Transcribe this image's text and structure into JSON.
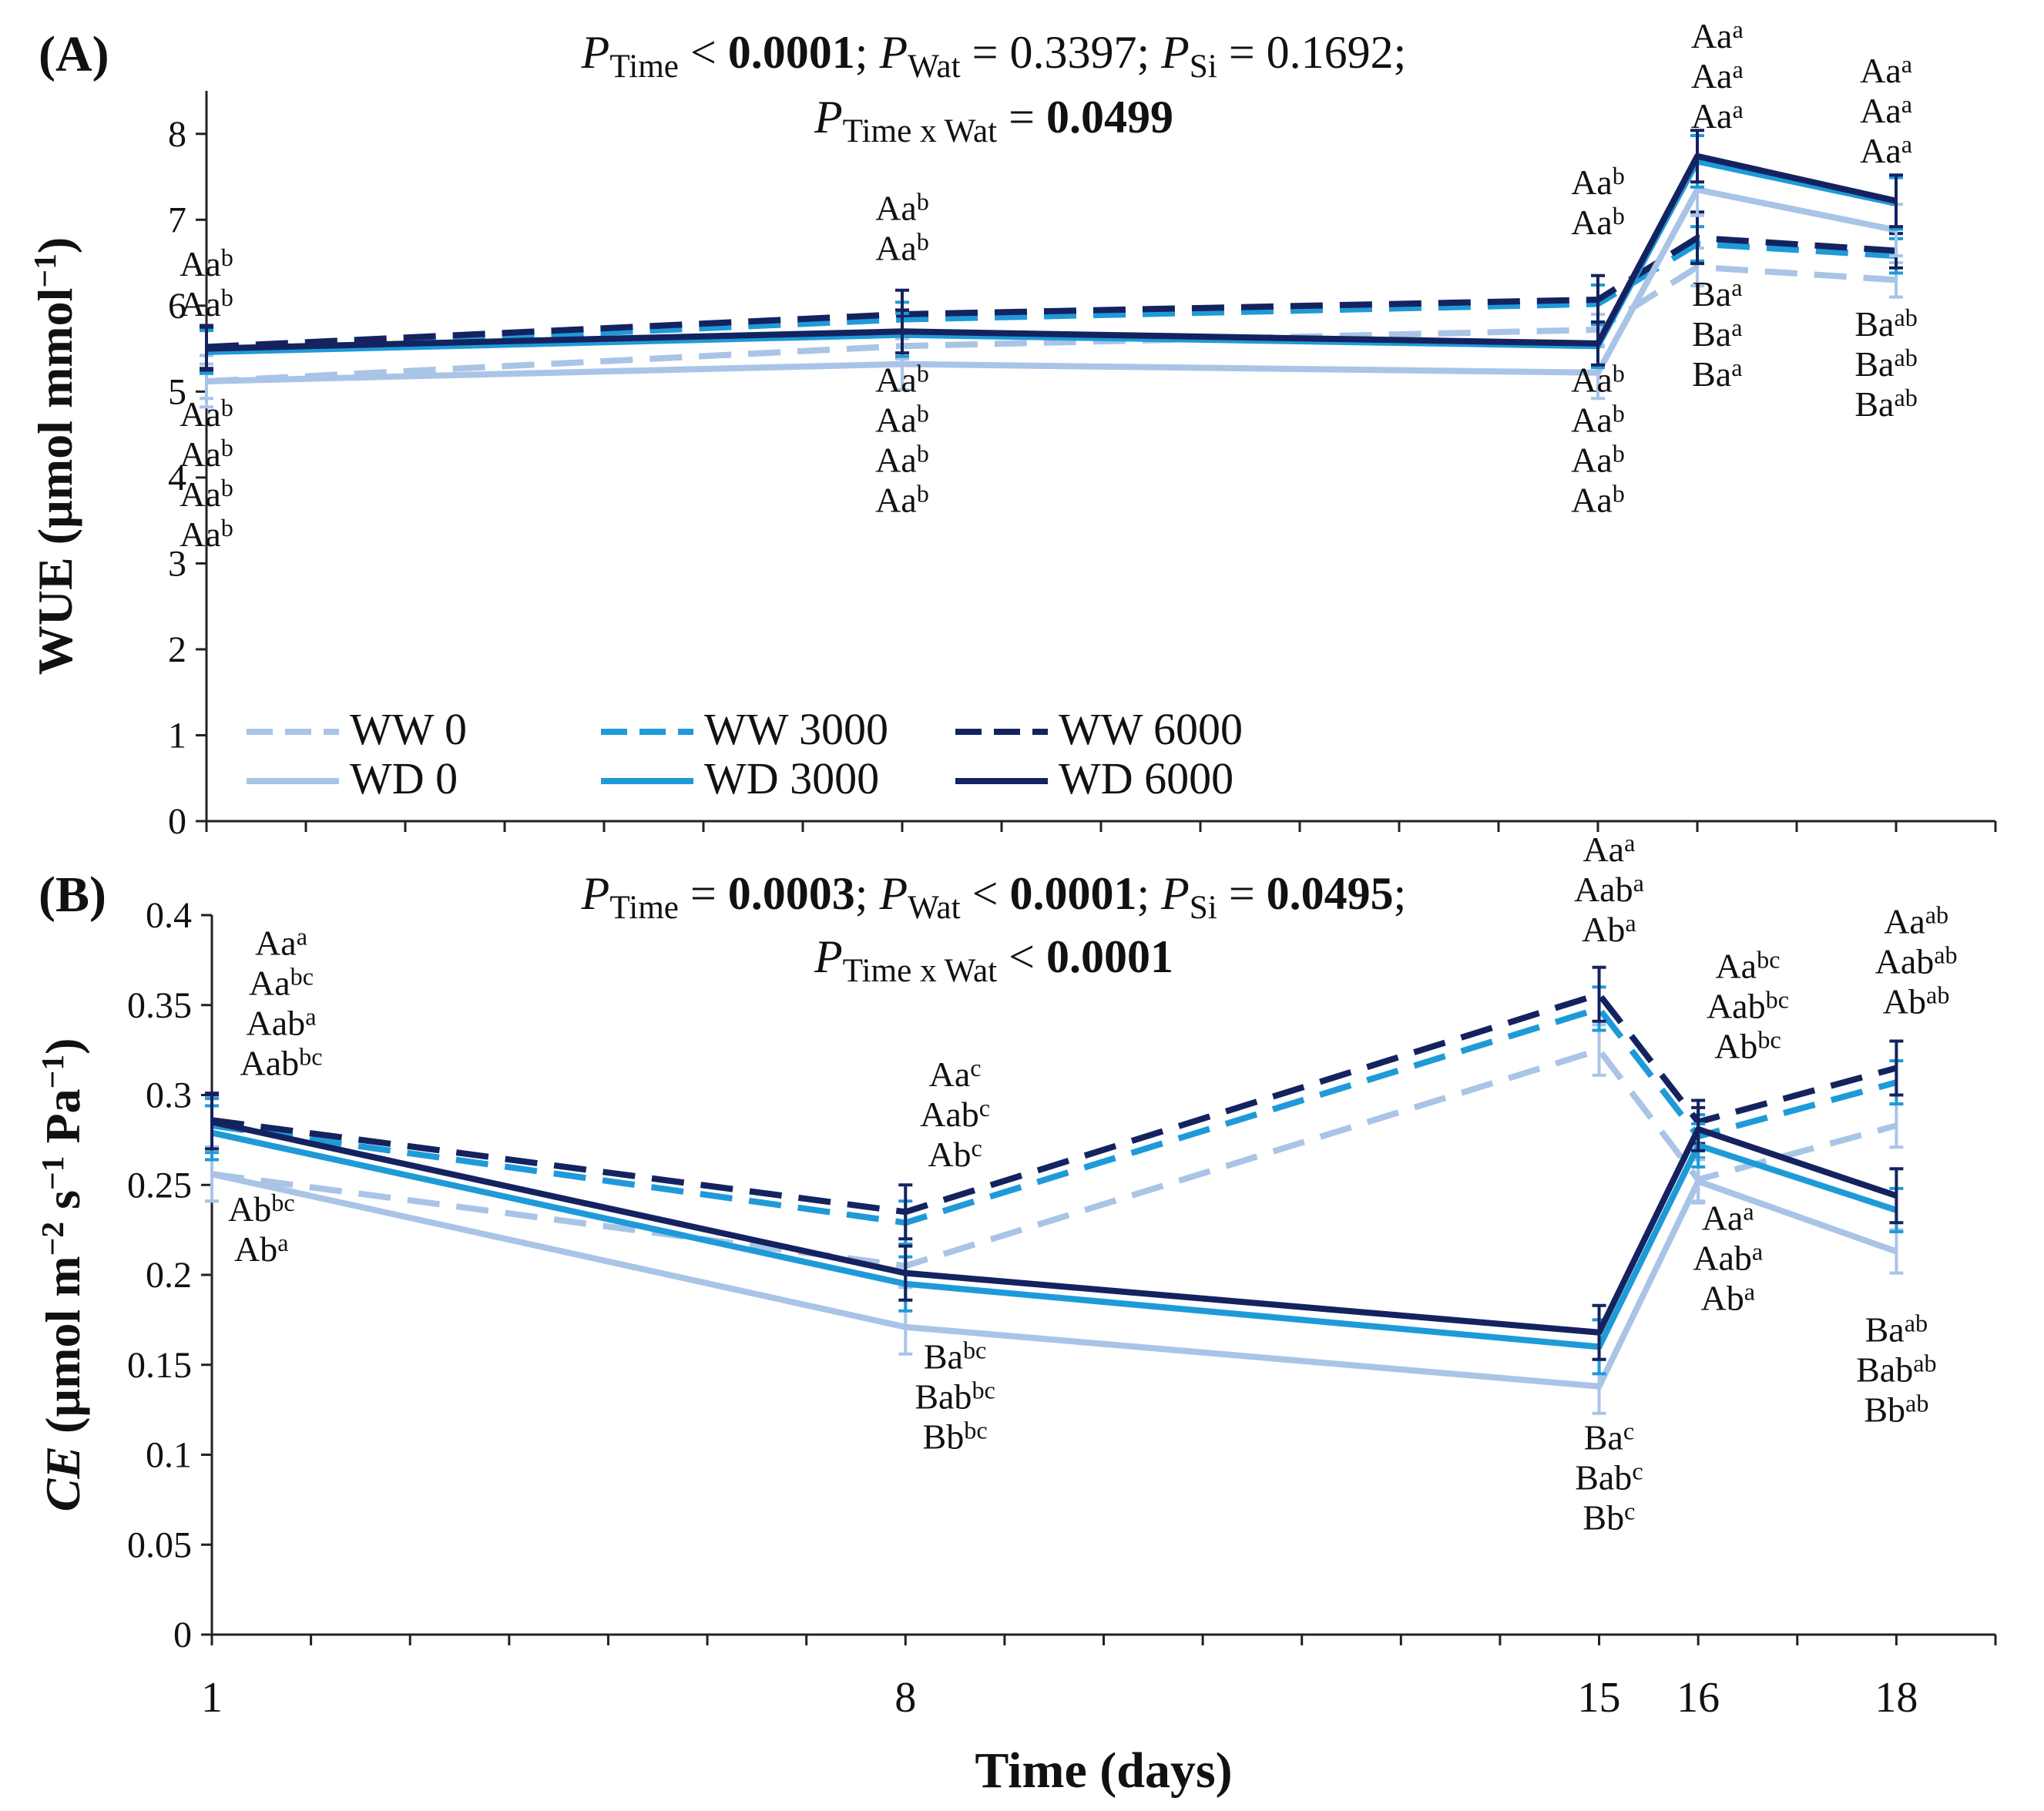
{
  "colors": {
    "light": "#a9c4e6",
    "mid": "#1f9ad8",
    "dark": "#14235f"
  },
  "legend": [
    {
      "label": "WW 0",
      "color_key": "light",
      "dashed": true
    },
    {
      "label": "WW 3000",
      "color_key": "mid",
      "dashed": true
    },
    {
      "label": "WW 6000",
      "color_key": "dark",
      "dashed": true
    },
    {
      "label": "WD 0",
      "color_key": "light",
      "dashed": false
    },
    {
      "label": "WD 3000",
      "color_key": "mid",
      "dashed": false
    },
    {
      "label": "WD 6000",
      "color_key": "dark",
      "dashed": false
    }
  ],
  "x_axis": {
    "label": "Time (days)",
    "ticks": [
      "1",
      "8",
      "15",
      "16",
      "18"
    ]
  },
  "chart_data": [
    {
      "id": "A",
      "type": "line",
      "panel_label": "(A)",
      "stats": [
        [
          {
            "t": "P",
            "italic": true
          },
          {
            "t": "Time",
            "sub": true
          },
          {
            "t": " < "
          },
          {
            "t": "0.0001",
            "bold": true
          },
          {
            "t": "; "
          },
          {
            "t": "P",
            "italic": true
          },
          {
            "t": "Wat",
            "sub": true
          },
          {
            "t": " = 0.3397; "
          },
          {
            "t": "P",
            "italic": true
          },
          {
            "t": "Si",
            "sub": true
          },
          {
            "t": " = 0.1692;"
          }
        ],
        [
          {
            "t": "P",
            "italic": true
          },
          {
            "t": "Time x Wat",
            "sub": true
          },
          {
            "t": " = "
          },
          {
            "t": "0.0499",
            "bold": true
          }
        ]
      ],
      "ylabel": [
        {
          "t": "WUE (µmol mmol"
        },
        {
          "t": "−1",
          "sup": true
        },
        {
          "t": ")"
        }
      ],
      "ylim": [
        0,
        8.5
      ],
      "yticks": [
        0,
        1,
        2,
        3,
        4,
        5,
        6,
        7,
        8
      ],
      "ytick_labels": [
        "0",
        "1",
        "2",
        "3",
        "4",
        "5",
        "6",
        "7",
        "8"
      ],
      "x": [
        1,
        8,
        15,
        16,
        18
      ],
      "xlim": [
        1,
        19
      ],
      "series": [
        {
          "name": "WW 0",
          "color_key": "light",
          "dashed": true,
          "values": [
            5.12,
            5.53,
            5.72,
            6.45,
            6.3
          ],
          "err": [
            0.2,
            0.15,
            0.18,
            0.22,
            0.2
          ]
        },
        {
          "name": "WW 3000",
          "color_key": "mid",
          "dashed": true,
          "values": [
            5.48,
            5.84,
            6.02,
            6.72,
            6.58
          ],
          "err": [
            0.25,
            0.2,
            0.22,
            0.2,
            0.2
          ]
        },
        {
          "name": "WW 6000",
          "color_key": "dark",
          "dashed": true,
          "values": [
            5.52,
            5.9,
            6.07,
            6.79,
            6.64
          ],
          "err": [
            0.25,
            0.28,
            0.28,
            0.3,
            0.2
          ]
        },
        {
          "name": "WD 0",
          "color_key": "light",
          "dashed": false,
          "values": [
            5.12,
            5.32,
            5.22,
            7.35,
            6.88
          ],
          "err": [
            0.3,
            0.3,
            0.3,
            0.3,
            0.3
          ]
        },
        {
          "name": "WD 3000",
          "color_key": "mid",
          "dashed": false,
          "values": [
            5.46,
            5.66,
            5.53,
            7.68,
            7.19
          ],
          "err": [
            0.25,
            0.25,
            0.25,
            0.3,
            0.3
          ]
        },
        {
          "name": "WD 6000",
          "color_key": "dark",
          "dashed": false,
          "values": [
            5.5,
            5.7,
            5.56,
            7.74,
            7.22
          ],
          "err": [
            0.25,
            0.25,
            0.25,
            0.3,
            0.3
          ]
        }
      ],
      "annotations": [
        {
          "x": 1,
          "y": 6.35,
          "lines": [
            [
              "Aa",
              "b"
            ],
            [
              "Aa",
              "b"
            ]
          ]
        },
        {
          "x": 1,
          "y": 4.6,
          "lines": [
            [
              "Aa",
              "b"
            ],
            [
              "Aa",
              "b"
            ],
            [
              "Aa",
              "b"
            ],
            [
              "Aa",
              "b"
            ]
          ]
        },
        {
          "x": 8,
          "y": 7.0,
          "lines": [
            [
              "Aa",
              "b"
            ],
            [
              "Aa",
              "b"
            ]
          ]
        },
        {
          "x": 8,
          "y": 5.0,
          "lines": [
            [
              "Aa",
              "b"
            ],
            [
              "Aa",
              "b"
            ],
            [
              "Aa",
              "b"
            ],
            [
              "Aa",
              "b"
            ]
          ]
        },
        {
          "x": 15,
          "y": 7.3,
          "lines": [
            [
              "Aa",
              "b"
            ],
            [
              "Aa",
              "b"
            ]
          ]
        },
        {
          "x": 15,
          "y": 5.0,
          "lines": [
            [
              "Aa",
              "b"
            ],
            [
              "Aa",
              "b"
            ],
            [
              "Aa",
              "b"
            ],
            [
              "Aa",
              "b"
            ]
          ]
        },
        {
          "x": 16.2,
          "y": 9.0,
          "lines": [
            [
              "Aa",
              "a"
            ],
            [
              "Aa",
              "a"
            ],
            [
              "Aa",
              "a"
            ]
          ]
        },
        {
          "x": 16.2,
          "y": 6.0,
          "lines": [
            [
              "Ba",
              "a"
            ],
            [
              "Ba",
              "a"
            ],
            [
              "Ba",
              "a"
            ]
          ]
        },
        {
          "x": 17.9,
          "y": 8.6,
          "lines": [
            [
              "Aa",
              "a"
            ],
            [
              "Aa",
              "a"
            ],
            [
              "Aa",
              "a"
            ]
          ]
        },
        {
          "x": 17.9,
          "y": 5.65,
          "lines": [
            [
              "Ba",
              "ab"
            ],
            [
              "Ba",
              "ab"
            ],
            [
              "Ba",
              "ab"
            ]
          ]
        }
      ]
    },
    {
      "id": "B",
      "type": "line",
      "panel_label": "(B)",
      "stats": [
        [
          {
            "t": "P",
            "italic": true
          },
          {
            "t": "Time",
            "sub": true
          },
          {
            "t": " = "
          },
          {
            "t": "0.0003",
            "bold": true
          },
          {
            "t": "; "
          },
          {
            "t": "P",
            "italic": true
          },
          {
            "t": "Wat",
            "sub": true
          },
          {
            "t": " < "
          },
          {
            "t": "0.0001",
            "bold": true
          },
          {
            "t": "; "
          },
          {
            "t": "P",
            "italic": true
          },
          {
            "t": "Si",
            "sub": true
          },
          {
            "t": " = "
          },
          {
            "t": "0.0495",
            "bold": true
          },
          {
            "t": ";"
          }
        ],
        [
          {
            "t": "P",
            "italic": true
          },
          {
            "t": "Time x Wat",
            "sub": true
          },
          {
            "t": " < "
          },
          {
            "t": "0.0001",
            "bold": true
          }
        ]
      ],
      "ylabel": [
        {
          "t": "CE",
          "italic": true
        },
        {
          "t": " (µmol m"
        },
        {
          "t": "−2",
          "sup": true
        },
        {
          "t": " s"
        },
        {
          "t": "−1",
          "sup": true
        },
        {
          "t": " Pa"
        },
        {
          "t": "−1",
          "sup": true
        },
        {
          "t": ")"
        }
      ],
      "ylim": [
        0,
        0.4
      ],
      "yticks": [
        0,
        0.05,
        0.1,
        0.15,
        0.2,
        0.25,
        0.3,
        0.35,
        0.4
      ],
      "ytick_labels": [
        "0",
        "0.05",
        "0.1",
        "0.15",
        "0.2",
        "0.25",
        "0.3",
        "0.35",
        "0.4"
      ],
      "x": [
        1,
        8,
        15,
        16,
        18
      ],
      "xlim": [
        1,
        19
      ],
      "series": [
        {
          "name": "WW 0",
          "color_key": "light",
          "dashed": true,
          "values": [
            0.256,
            0.205,
            0.325,
            0.253,
            0.283
          ],
          "err": [
            0.015,
            0.012,
            0.014,
            0.012,
            0.012
          ]
        },
        {
          "name": "WW 3000",
          "color_key": "mid",
          "dashed": true,
          "values": [
            0.283,
            0.229,
            0.348,
            0.277,
            0.307
          ],
          "err": [
            0.015,
            0.012,
            0.012,
            0.012,
            0.012
          ]
        },
        {
          "name": "WW 6000",
          "color_key": "dark",
          "dashed": true,
          "values": [
            0.286,
            0.235,
            0.356,
            0.285,
            0.315
          ],
          "err": [
            0.015,
            0.015,
            0.015,
            0.012,
            0.015
          ]
        },
        {
          "name": "WD 0",
          "color_key": "light",
          "dashed": false,
          "values": [
            0.256,
            0.171,
            0.138,
            0.252,
            0.213
          ],
          "err": [
            0.015,
            0.015,
            0.015,
            0.012,
            0.012
          ]
        },
        {
          "name": "WD 3000",
          "color_key": "mid",
          "dashed": false,
          "values": [
            0.279,
            0.195,
            0.16,
            0.272,
            0.236
          ],
          "err": [
            0.015,
            0.015,
            0.015,
            0.012,
            0.012
          ]
        },
        {
          "name": "WD 6000",
          "color_key": "dark",
          "dashed": false,
          "values": [
            0.285,
            0.201,
            0.168,
            0.281,
            0.244
          ],
          "err": [
            0.015,
            0.015,
            0.015,
            0.012,
            0.015
          ]
        }
      ],
      "annotations": [
        {
          "x": 1.7,
          "y": 0.378,
          "lines": [
            [
              "Aa",
              "a"
            ],
            [
              "Aa",
              "bc"
            ],
            [
              "Aab",
              "a"
            ],
            [
              "Aab",
              "bc"
            ]
          ]
        },
        {
          "x": 1.5,
          "y": 0.23,
          "lines": [
            [
              "Ab",
              "bc"
            ],
            [
              "Ab",
              "a"
            ]
          ]
        },
        {
          "x": 8.5,
          "y": 0.305,
          "lines": [
            [
              "Aa",
              "c"
            ],
            [
              "Aab",
              "c"
            ],
            [
              "Ab",
              "c"
            ]
          ]
        },
        {
          "x": 8.5,
          "y": 0.148,
          "lines": [
            [
              "Ba",
              "bc"
            ],
            [
              "Bab",
              "bc"
            ],
            [
              "Bb",
              "bc"
            ]
          ]
        },
        {
          "x": 15.1,
          "y": 0.43,
          "lines": [
            [
              "Aa",
              "a"
            ],
            [
              "Aab",
              "a"
            ],
            [
              "Ab",
              "a"
            ]
          ]
        },
        {
          "x": 15.1,
          "y": 0.103,
          "lines": [
            [
              "Ba",
              "c"
            ],
            [
              "Bab",
              "c"
            ],
            [
              "Bb",
              "c"
            ]
          ]
        },
        {
          "x": 16.5,
          "y": 0.365,
          "lines": [
            [
              "Aa",
              "bc"
            ],
            [
              "Aab",
              "bc"
            ],
            [
              "Ab",
              "bc"
            ]
          ]
        },
        {
          "x": 16.3,
          "y": 0.225,
          "lines": [
            [
              "Aa",
              "a"
            ],
            [
              "Aab",
              "a"
            ],
            [
              "Ab",
              "a"
            ]
          ]
        },
        {
          "x": 18.2,
          "y": 0.39,
          "lines": [
            [
              "Aa",
              "ab"
            ],
            [
              "Aab",
              "ab"
            ],
            [
              "Ab",
              "ab"
            ]
          ]
        },
        {
          "x": 18.0,
          "y": 0.163,
          "lines": [
            [
              "Ba",
              "ab"
            ],
            [
              "Bab",
              "ab"
            ],
            [
              "Bb",
              "ab"
            ]
          ]
        }
      ]
    }
  ]
}
